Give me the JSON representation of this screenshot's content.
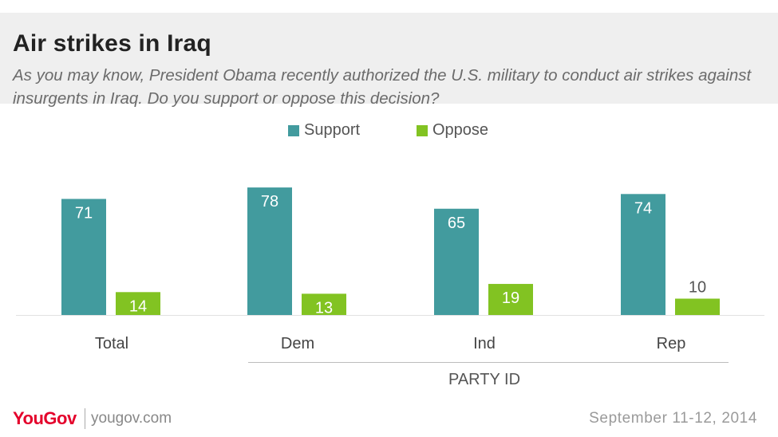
{
  "header": {
    "title": "Air strikes in Iraq",
    "subtitle": "As you may know, President Obama recently authorized the U.S. military to conduct air strikes against insurgents in Iraq. Do you support or oppose this decision?"
  },
  "chart_data": {
    "type": "bar",
    "categories": [
      "Total",
      "Dem",
      "Ind",
      "Rep"
    ],
    "series": [
      {
        "name": "Support",
        "values": [
          71,
          78,
          65,
          74
        ],
        "color": "#429b9e"
      },
      {
        "name": "Oppose",
        "values": [
          14,
          13,
          19,
          10
        ],
        "color": "#82c322"
      }
    ],
    "group_label": "PARTY ID",
    "group_categories": [
      "Dem",
      "Ind",
      "Rep"
    ],
    "ylim": [
      0,
      100
    ],
    "legend_position": "top-center",
    "grid": false
  },
  "footer": {
    "brand": "YouGov",
    "site": "yougov.com",
    "date": "September 11-12, 2014"
  }
}
